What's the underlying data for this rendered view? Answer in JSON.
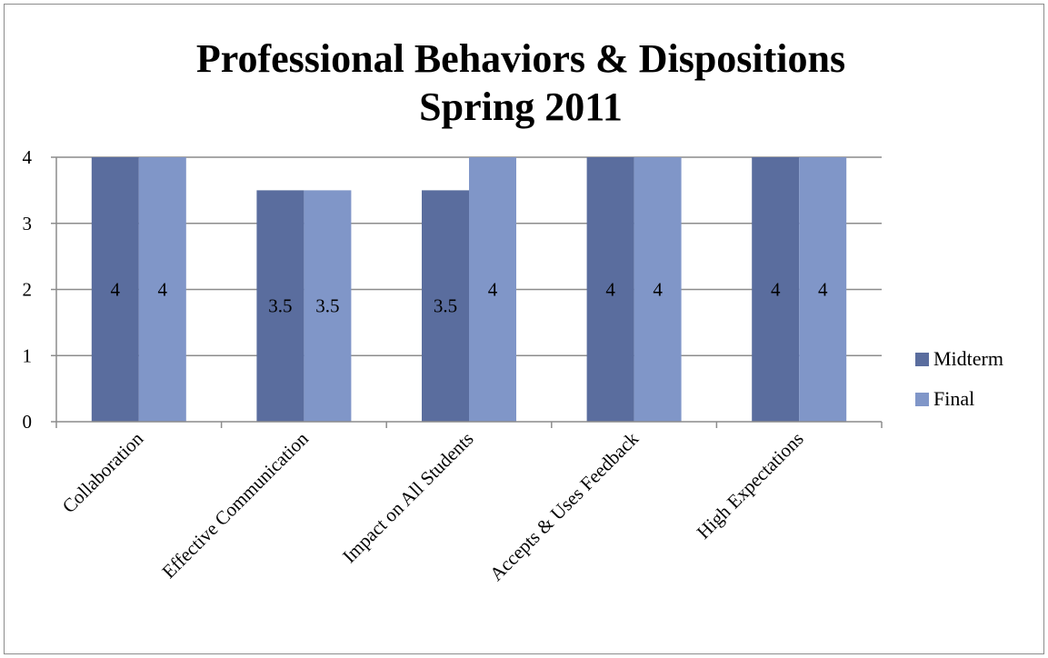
{
  "chart_data": {
    "type": "bar",
    "title_lines": [
      "Professional Behaviors & Dispositions",
      "Spring 2011"
    ],
    "categories": [
      "Collaboration",
      "Effective Communication",
      "Impact on All Students",
      "Accepts & Uses Feedback",
      "High Expectations"
    ],
    "series": [
      {
        "name": "Midterm",
        "values": [
          4,
          3.5,
          3.5,
          4,
          4
        ],
        "color": "#5a6d9e"
      },
      {
        "name": "Final",
        "values": [
          4,
          3.5,
          4,
          4,
          4
        ],
        "color": "#8096c8"
      }
    ],
    "data_labels": [
      [
        "4",
        "3.5",
        "3.5",
        "4",
        "4"
      ],
      [
        "4",
        "3.5",
        "4",
        "4",
        "4"
      ]
    ],
    "y_ticks": [
      "0",
      "1",
      "2",
      "3",
      "4"
    ],
    "ylim": [
      0,
      4
    ],
    "grid": true,
    "legend": "right"
  }
}
